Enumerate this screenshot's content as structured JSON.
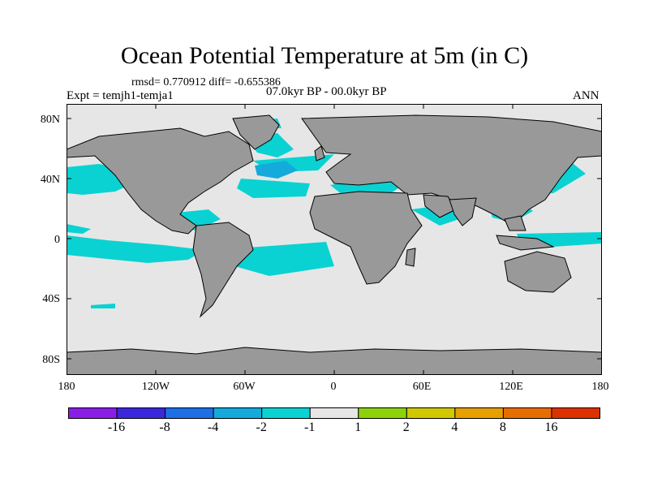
{
  "title": "Ocean Potential Temperature at 5m (in C)",
  "stats": "rmsd= 0.770912 diff= -0.655386",
  "experiment": "Expt = temjh1-temja1",
  "period": "07.0kyr BP - 00.0kyr BP",
  "season": "ANN",
  "lat_ticks": [
    "80N",
    "40N",
    "0",
    "40S",
    "80S"
  ],
  "lon_ticks": [
    "180",
    "120W",
    "60W",
    "0",
    "60E",
    "120E",
    "180"
  ],
  "colorbar": {
    "colors": [
      "#8a1ee6",
      "#3c28dc",
      "#1e6ee6",
      "#14aadc",
      "#0ad2d2",
      "#e6e6e6",
      "#8cd20a",
      "#d2c800",
      "#e6a000",
      "#e66e00",
      "#dc3200"
    ],
    "labels": [
      "-16",
      "-8",
      "-4",
      "-2",
      "-1",
      "1",
      "2",
      "4",
      "8",
      "16"
    ]
  },
  "palette": {
    "land": "#999999",
    "ocean_neutral": "#e6e6e6",
    "anomaly_cyan": "#0ad2d2",
    "anomaly_blue": "#14aadc",
    "anomaly_green": "#8cd20a"
  }
}
